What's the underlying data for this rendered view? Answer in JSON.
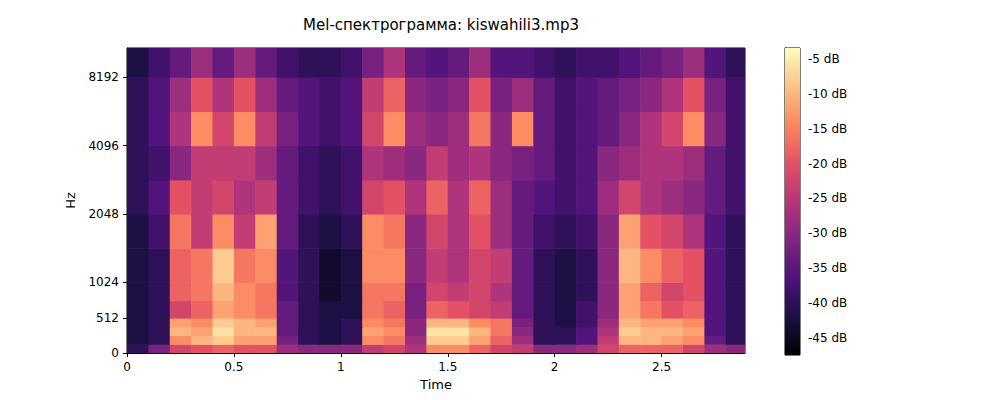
{
  "chart_data": {
    "type": "heatmap",
    "title": "Mel-спектрограмма: kiswahili3.mp3",
    "x_label": "Time",
    "y_label": "Hz",
    "color": "magma",
    "xlim": [
      0,
      2.89
    ],
    "xticks": [
      0,
      0.5,
      1,
      1.5,
      2,
      2.5
    ],
    "ylim": [
      0,
      11025
    ],
    "yticks": [
      0,
      512,
      1024,
      2048,
      4096,
      8192
    ],
    "x_edges": [
      0,
      0.1,
      0.2,
      0.3,
      0.4,
      0.5,
      0.6,
      0.7,
      0.8,
      0.9,
      1.0,
      1.1,
      1.2,
      1.3,
      1.4,
      1.5,
      1.6,
      1.7,
      1.8,
      1.9,
      2.0,
      2.1,
      2.2,
      2.3,
      2.4,
      2.5,
      2.6,
      2.7,
      2.8,
      2.89
    ],
    "y_edges": [
      0,
      128,
      256,
      384,
      512,
      768,
      1024,
      1448,
      2048,
      2896,
      4096,
      5793,
      8192,
      11025
    ],
    "values": [
      [
        -40,
        -32,
        -22,
        -20,
        -18,
        -20,
        -20,
        -28,
        -30,
        -30,
        -30,
        -24,
        -22,
        -26,
        -14,
        -14,
        -18,
        -22,
        -24,
        -30,
        -30,
        -28,
        -22,
        -18,
        -18,
        -18,
        -22,
        -28,
        -30
      ],
      [
        -42,
        -40,
        -14,
        -10,
        -8,
        -12,
        -12,
        -32,
        -40,
        -42,
        -40,
        -14,
        -16,
        -28,
        -8,
        -8,
        -12,
        -18,
        -28,
        -40,
        -40,
        -36,
        -24,
        -10,
        -10,
        -12,
        -14,
        -34,
        -40
      ],
      [
        -42,
        -40,
        -10,
        -12,
        -6,
        -10,
        -10,
        -34,
        -40,
        -42,
        -40,
        -12,
        -14,
        -30,
        -6,
        -6,
        -10,
        -16,
        -30,
        -40,
        -40,
        -36,
        -26,
        -8,
        -10,
        -10,
        -12,
        -36,
        -40
      ],
      [
        -42,
        -40,
        -12,
        -14,
        -8,
        -10,
        -12,
        -34,
        -40,
        -42,
        -40,
        -14,
        -16,
        -30,
        -10,
        -10,
        -14,
        -16,
        -32,
        -40,
        -42,
        -38,
        -28,
        -10,
        -12,
        -12,
        -14,
        -36,
        -40
      ],
      [
        -42,
        -40,
        -22,
        -18,
        -12,
        -14,
        -16,
        -34,
        -40,
        -42,
        -42,
        -16,
        -18,
        -32,
        -18,
        -20,
        -22,
        -24,
        -34,
        -40,
        -42,
        -38,
        -30,
        -12,
        -16,
        -20,
        -18,
        -36,
        -40
      ],
      [
        -42,
        -40,
        -18,
        -16,
        -10,
        -14,
        -16,
        -36,
        -40,
        -44,
        -42,
        -16,
        -16,
        -32,
        -22,
        -24,
        -22,
        -26,
        -34,
        -40,
        -42,
        -40,
        -30,
        -12,
        -18,
        -22,
        -20,
        -36,
        -40
      ],
      [
        -42,
        -40,
        -18,
        -16,
        -8,
        -16,
        -14,
        -36,
        -40,
        -44,
        -42,
        -14,
        -14,
        -30,
        -24,
        -26,
        -22,
        -24,
        -34,
        -40,
        -42,
        -40,
        -30,
        -10,
        -14,
        -18,
        -20,
        -36,
        -40
      ],
      [
        -42,
        -38,
        -16,
        -24,
        -14,
        -24,
        -12,
        -34,
        -40,
        -42,
        -40,
        -14,
        -16,
        -30,
        -22,
        -26,
        -20,
        -28,
        -34,
        -38,
        -40,
        -38,
        -30,
        -12,
        -20,
        -22,
        -26,
        -36,
        -40
      ],
      [
        -40,
        -36,
        -20,
        -24,
        -22,
        -26,
        -24,
        -34,
        -38,
        -40,
        -38,
        -22,
        -20,
        -26,
        -18,
        -26,
        -18,
        -28,
        -34,
        -36,
        -38,
        -36,
        -28,
        -22,
        -26,
        -28,
        -30,
        -34,
        -38
      ],
      [
        -40,
        -38,
        -30,
        -24,
        -24,
        -24,
        -28,
        -34,
        -38,
        -40,
        -38,
        -26,
        -28,
        -30,
        -24,
        -28,
        -26,
        -30,
        -32,
        -34,
        -38,
        -36,
        -30,
        -28,
        -26,
        -26,
        -28,
        -34,
        -38
      ],
      [
        -40,
        -36,
        -26,
        -14,
        -22,
        -14,
        -24,
        -32,
        -36,
        -38,
        -36,
        -22,
        -14,
        -28,
        -30,
        -28,
        -16,
        -30,
        -14,
        -34,
        -38,
        -36,
        -34,
        -30,
        -26,
        -22,
        -14,
        -30,
        -38
      ],
      [
        -40,
        -36,
        -28,
        -20,
        -26,
        -20,
        -28,
        -34,
        -36,
        -38,
        -36,
        -24,
        -18,
        -30,
        -32,
        -30,
        -20,
        -32,
        -28,
        -34,
        -38,
        -36,
        -34,
        -32,
        -30,
        -26,
        -20,
        -32,
        -38
      ],
      [
        -42,
        -38,
        -34,
        -28,
        -34,
        -28,
        -34,
        -38,
        -40,
        -40,
        -38,
        -32,
        -26,
        -34,
        -36,
        -34,
        -28,
        -36,
        -36,
        -38,
        -40,
        -38,
        -38,
        -36,
        -34,
        -32,
        -28,
        -36,
        -40
      ]
    ],
    "colorbar": {
      "range": [
        -47.5,
        -3.4
      ],
      "ticks": [
        {
          "value": -5,
          "label": "-5 dB"
        },
        {
          "value": -10,
          "label": "-10 dB"
        },
        {
          "value": -15,
          "label": "-15 dB"
        },
        {
          "value": -20,
          "label": "-20 dB"
        },
        {
          "value": -25,
          "label": "-25 dB"
        },
        {
          "value": -30,
          "label": "-30 dB"
        },
        {
          "value": -35,
          "label": "-35 dB"
        },
        {
          "value": -40,
          "label": "-40 dB"
        },
        {
          "value": -45,
          "label": "-45 dB"
        }
      ]
    }
  }
}
